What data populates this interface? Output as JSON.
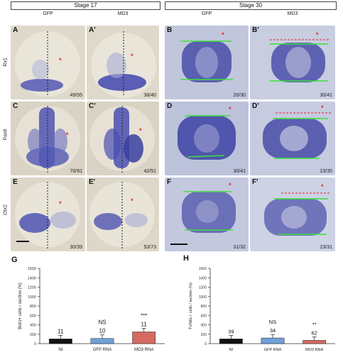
{
  "stage_headers": {
    "left": "Stage 17",
    "right": "Stage 30"
  },
  "column_headers": [
    "GFP",
    "MD3",
    "GFP",
    "MD3"
  ],
  "row_labels": [
    "Rx1",
    "Pax6",
    "Otx2"
  ],
  "panels": [
    {
      "label": "A",
      "ratio": "49/55"
    },
    {
      "label": "A'",
      "ratio": "38/40"
    },
    {
      "label": "B",
      "ratio": "20/30"
    },
    {
      "label": "B'",
      "ratio": "30/41"
    },
    {
      "label": "C",
      "ratio": "70/91"
    },
    {
      "label": "C'",
      "ratio": "42/51"
    },
    {
      "label": "D",
      "ratio": "30/41"
    },
    {
      "label": "D'",
      "ratio": "23/35"
    },
    {
      "label": "E",
      "ratio": "30/39"
    },
    {
      "label": "E'",
      "ratio": "53/73"
    },
    {
      "label": "F",
      "ratio": "31/32"
    },
    {
      "label": "F'",
      "ratio": "23/31"
    }
  ],
  "colors": {
    "embryo": "#e6e1d4",
    "stain": "#4a4fb0",
    "bg17": "#ded9cb",
    "bg30": "#b8bfd8",
    "green": "#3de03a",
    "red": "#e0252a"
  },
  "chart_data": [
    {
      "type": "bar",
      "panel_label": "G",
      "ylabel": "BrdU+ cells / section (%)",
      "categories": [
        "NI",
        "GFP RNA",
        "MO3 RNA"
      ],
      "values": [
        100,
        110,
        250
      ],
      "counts": [
        "11",
        "10",
        "11"
      ],
      "significance": [
        "",
        "NS",
        "***"
      ],
      "colors": [
        "#111111",
        "#6fa0d8",
        "#d46a62"
      ],
      "ylim": [
        0,
        1600
      ],
      "yticks": [
        "0",
        "200",
        "400",
        "600",
        "800",
        "1000",
        "1200",
        "1400",
        "1600"
      ]
    },
    {
      "type": "bar",
      "panel_label": "H",
      "ylabel": "TUNEL+ cells / section (%)",
      "categories": [
        "NI",
        "GFP RNA",
        "MO3 RNA"
      ],
      "values": [
        100,
        120,
        70
      ],
      "counts": [
        "39",
        "34",
        "62"
      ],
      "significance": [
        "",
        "NS",
        "**"
      ],
      "colors": [
        "#111111",
        "#6fa0d8",
        "#d46a62"
      ],
      "ylim": [
        0,
        1600
      ],
      "yticks": [
        "0",
        "200",
        "400",
        "600",
        "800",
        "1000",
        "1200",
        "1400",
        "1600"
      ]
    }
  ]
}
